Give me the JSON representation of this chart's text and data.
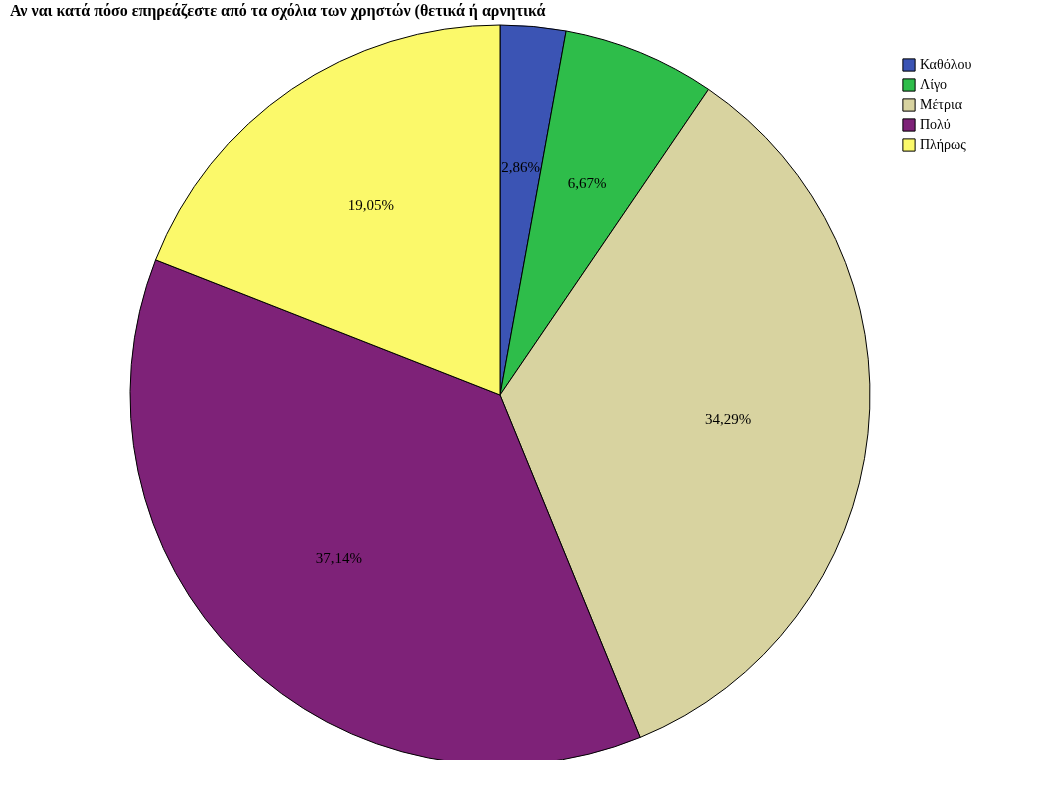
{
  "chart_data": {
    "type": "pie",
    "title": "Αν ναι κατά πόσο επηρεάζεστε από τα σχόλια των χρηστών (θετικά ή αρνητικά",
    "categories": [
      "Καθόλου",
      "Λίγο",
      "Μέτρια",
      "Πολύ",
      "Πλήρως"
    ],
    "values": [
      2.86,
      6.67,
      34.29,
      37.14,
      19.05
    ],
    "value_labels": [
      "2,86%",
      "6,67%",
      "34,29%",
      "37,14%",
      "19,05%"
    ],
    "colors": [
      "#3b54b4",
      "#2ebd4a",
      "#d8d3a0",
      "#7e2278",
      "#fbf96a"
    ],
    "legend": "top right"
  }
}
